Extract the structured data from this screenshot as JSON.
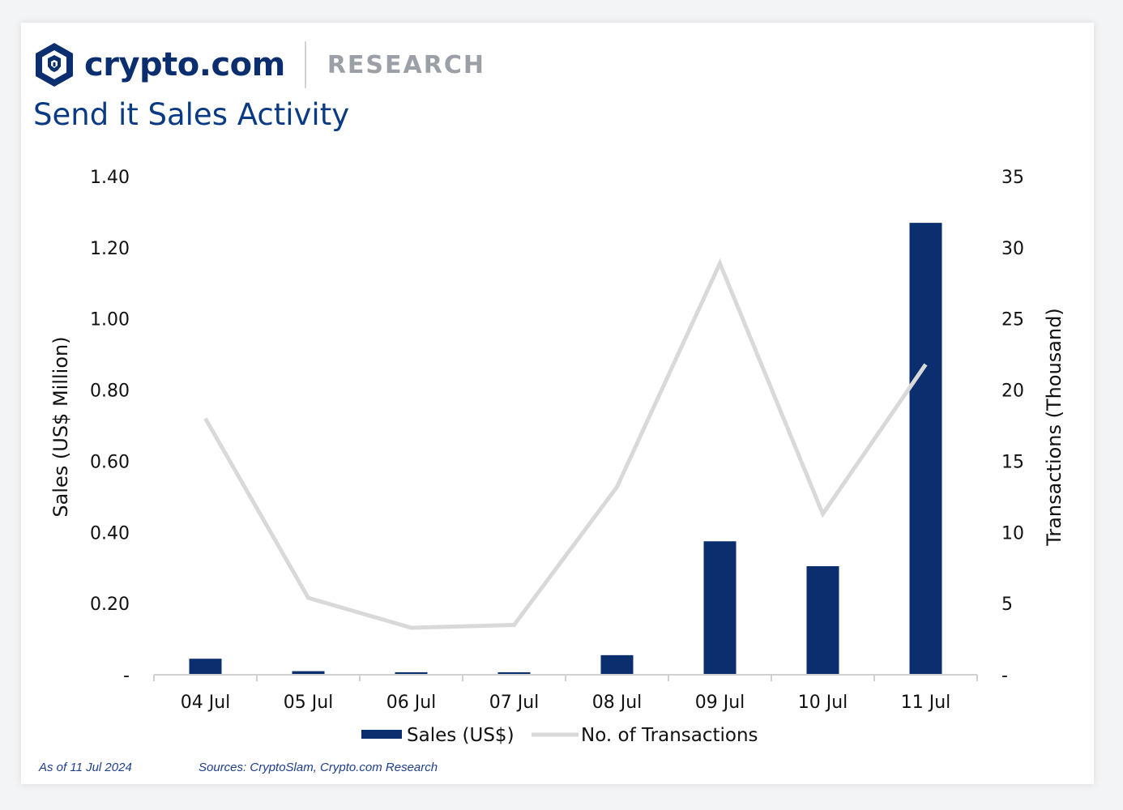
{
  "brand": {
    "name": "crypto.com",
    "section": "RESEARCH",
    "logo_icon": "crypto-com-lion-shield-icon",
    "colors": {
      "primary": "#0b2f6e",
      "title": "#0b3a85",
      "bar": "#0b2f6e",
      "line": "#d9d9d9"
    }
  },
  "footer": {
    "as_of": "As of 11 Jul 2024",
    "sources": "Sources: CryptoSlam, Crypto.com Research"
  },
  "chart_data": {
    "type": "bar",
    "title": "Send it Sales Activity",
    "categories": [
      "04 Jul",
      "05 Jul",
      "06 Jul",
      "07 Jul",
      "08 Jul",
      "09 Jul",
      "10 Jul",
      "11 Jul"
    ],
    "series": [
      {
        "name": "Sales (US$)",
        "type": "bar",
        "axis": "left",
        "values": [
          0.045,
          0.01,
          0.007,
          0.007,
          0.055,
          0.375,
          0.305,
          1.27
        ]
      },
      {
        "name": "No. of Transactions",
        "type": "line",
        "axis": "right",
        "values": [
          18.0,
          5.4,
          3.3,
          3.5,
          13.2,
          28.9,
          11.3,
          21.8
        ]
      }
    ],
    "ylabel": "Sales (US$ Million)",
    "ylim": [
      0,
      1.4
    ],
    "yticks": [
      "-",
      "0.20",
      "0.40",
      "0.60",
      "0.80",
      "1.00",
      "1.20",
      "1.40"
    ],
    "y2label": "Transactions (Thousand)",
    "y2lim": [
      0,
      35
    ],
    "y2ticks": [
      "-",
      "5",
      "10",
      "15",
      "20",
      "25",
      "30",
      "35"
    ],
    "grid": false,
    "legend": "bottom-center"
  }
}
